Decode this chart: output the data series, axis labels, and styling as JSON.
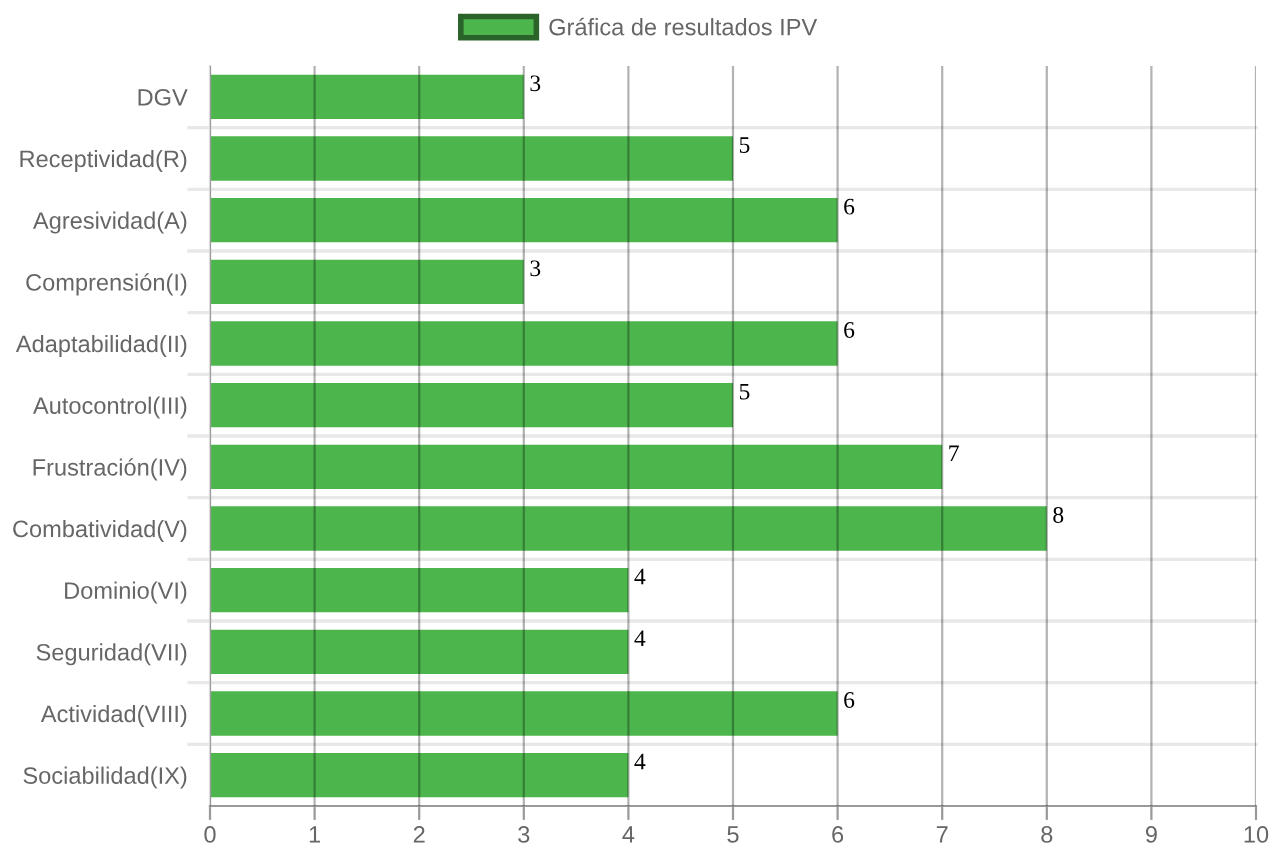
{
  "chart_data": {
    "type": "bar",
    "orientation": "horizontal",
    "categories": [
      "DGV",
      "Receptividad(R)",
      "Agresividad(A)",
      "Comprensión(I)",
      "Adaptabilidad(II)",
      "Autocontrol(III)",
      "Frustración(IV)",
      "Combatividad(V)",
      "Dominio(VI)",
      "Seguridad(VII)",
      "Actividad(VIII)",
      "Sociabilidad(IX)"
    ],
    "series": [
      {
        "name": "Gráfica de resultados IPV",
        "color": "#4cb54c",
        "values": [
          3,
          5,
          6,
          3,
          6,
          5,
          7,
          8,
          4,
          4,
          6,
          4
        ]
      }
    ],
    "xlim": [
      0,
      10
    ],
    "xticks": [
      0,
      1,
      2,
      3,
      4,
      5,
      6,
      7,
      8,
      9,
      10
    ],
    "grid": true,
    "legend": "top",
    "data_labels": true
  }
}
